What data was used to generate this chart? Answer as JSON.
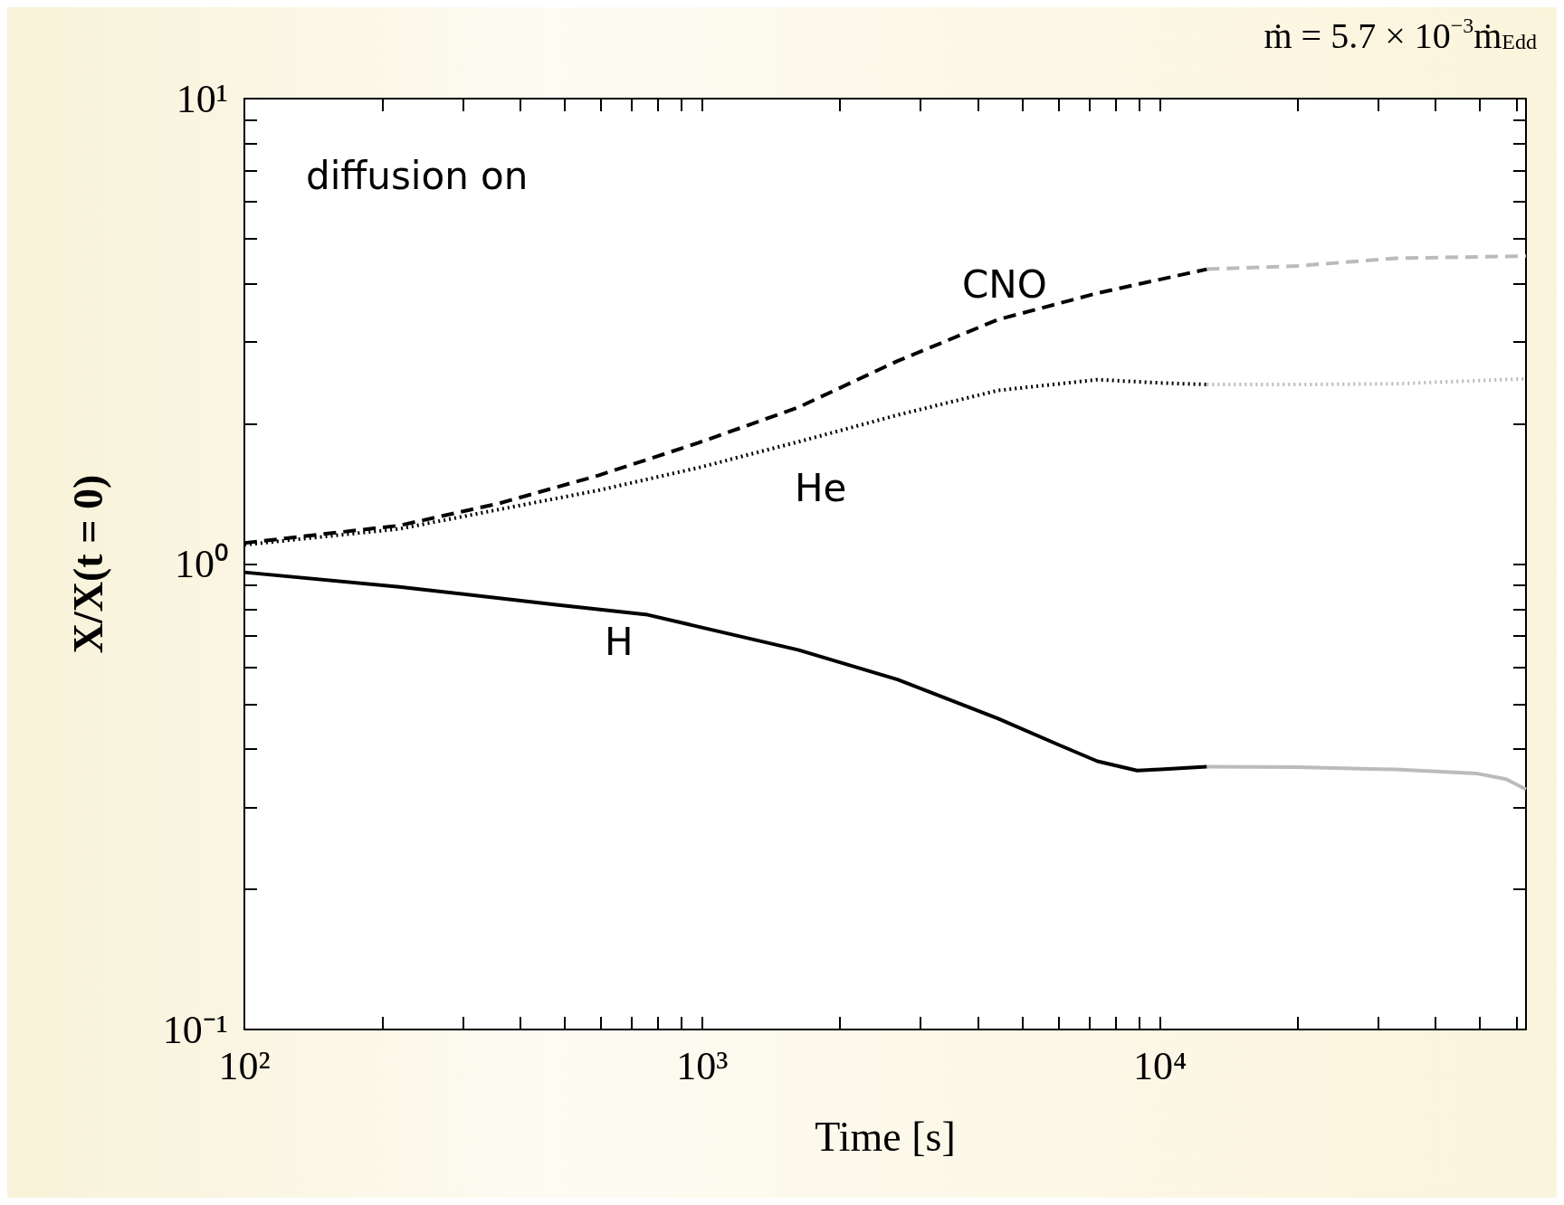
{
  "chart_data": {
    "type": "line",
    "subtitle": "ṁ = 5.7 × 10$^{−3}$ṁ$_{Edd}$",
    "xlabel": "Time [s]",
    "ylabel": "X/X(t = 0)",
    "log": "xy",
    "grid": false,
    "marker": "none",
    "xlim": [
      100,
      63000
    ],
    "ylim": [
      0.1,
      10
    ],
    "xticks": [
      {
        "value": 100,
        "label": "10²"
      },
      {
        "value": 200,
        "label": null
      },
      {
        "value": 300,
        "label": null
      },
      {
        "value": 400,
        "label": null
      },
      {
        "value": 500,
        "label": null
      },
      {
        "value": 600,
        "label": null
      },
      {
        "value": 700,
        "label": null
      },
      {
        "value": 800,
        "label": null
      },
      {
        "value": 900,
        "label": null
      },
      {
        "value": 1000,
        "label": "10³"
      },
      {
        "value": 2000,
        "label": null
      },
      {
        "value": 3000,
        "label": null
      },
      {
        "value": 4000,
        "label": null
      },
      {
        "value": 5000,
        "label": null
      },
      {
        "value": 6000,
        "label": null
      },
      {
        "value": 7000,
        "label": null
      },
      {
        "value": 8000,
        "label": null
      },
      {
        "value": 9000,
        "label": null
      },
      {
        "value": 10000,
        "label": "10⁴"
      },
      {
        "value": 20000,
        "label": null
      },
      {
        "value": 30000,
        "label": null
      },
      {
        "value": 40000,
        "label": null
      },
      {
        "value": 50000,
        "label": null
      },
      {
        "value": 60000,
        "label": null
      }
    ],
    "yticks": [
      {
        "value": 0.1,
        "label": "10⁻¹"
      },
      {
        "value": 0.2,
        "label": null
      },
      {
        "value": 0.3,
        "label": null
      },
      {
        "value": 0.4,
        "label": null
      },
      {
        "value": 0.5,
        "label": null
      },
      {
        "value": 0.6,
        "label": null
      },
      {
        "value": 0.7,
        "label": null
      },
      {
        "value": 0.8,
        "label": null
      },
      {
        "value": 0.9,
        "label": null
      },
      {
        "value": 1,
        "label": "10⁰"
      },
      {
        "value": 2,
        "label": null
      },
      {
        "value": 3,
        "label": null
      },
      {
        "value": 4,
        "label": null
      },
      {
        "value": 5,
        "label": null
      },
      {
        "value": 6,
        "label": null
      },
      {
        "value": 7,
        "label": null
      },
      {
        "value": 8,
        "label": null
      },
      {
        "value": 9,
        "label": null
      },
      {
        "value": 10,
        "label": "10¹"
      }
    ],
    "series": [
      {
        "color": "#bbbbbb",
        "line_style": "solid",
        "x": [
          12650,
          19900,
          32800,
          49000,
          57000,
          63000
        ],
        "values": [
          0.367,
          0.366,
          0.362,
          0.355,
          0.345,
          0.328
        ]
      },
      {
        "color": "#000000",
        "line_style": "solid",
        "x": [
          100,
          218,
          485,
          760,
          1620,
          2670,
          4420,
          5970,
          7300,
          8910,
          10000,
          12650
        ],
        "values": [
          0.96,
          0.893,
          0.817,
          0.778,
          0.654,
          0.565,
          0.466,
          0.41,
          0.377,
          0.36,
          0.362,
          0.367
        ]
      },
      {
        "color": "#bbbbbb",
        "line_style": "dashed",
        "x": [
          12650,
          19900,
          32800,
          63000
        ],
        "values": [
          4.3,
          4.37,
          4.54,
          4.59
        ]
      },
      {
        "color": "#000000",
        "line_style": "dashed",
        "x": [
          100,
          218,
          360,
          593,
          979,
          1620,
          2670,
          4420,
          7300,
          12650
        ],
        "values": [
          1.11,
          1.21,
          1.35,
          1.55,
          1.82,
          2.17,
          2.73,
          3.35,
          3.82,
          4.3
        ]
      },
      {
        "color": "#bbbbbb",
        "line_style": "dotted",
        "x": [
          12650,
          19900,
          32800,
          63000
        ],
        "values": [
          2.43,
          2.43,
          2.44,
          2.5
        ]
      },
      {
        "color": "#000000",
        "line_style": "dotted",
        "x": [
          100,
          218,
          360,
          593,
          979,
          1620,
          2670,
          4420,
          7300,
          10000,
          12650
        ],
        "values": [
          1.1,
          1.19,
          1.31,
          1.44,
          1.61,
          1.83,
          2.09,
          2.36,
          2.49,
          2.45,
          2.43
        ]
      }
    ],
    "annotations": [
      "diffusion on",
      "CNO",
      "He",
      "H"
    ]
  }
}
